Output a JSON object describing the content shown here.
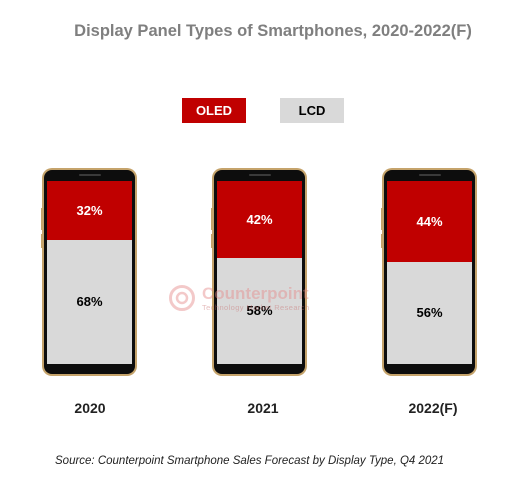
{
  "title": "Display Panel Types of Smartphones, 2020-2022(F)",
  "legend": [
    {
      "label": "OLED",
      "color": "#c00000",
      "text_color": "#ffffff"
    },
    {
      "label": "LCD",
      "color": "#d9d9d9",
      "text_color": "#000000"
    }
  ],
  "source": "Source: Counterpoint Smartphone Sales Forecast by Display Type, Q4 2021",
  "watermark": {
    "name": "Counterpoint",
    "tagline": "Technology Market Research"
  },
  "colors": {
    "phone_frame": "#c5a36b",
    "oled": "#c00000",
    "lcd": "#d9d9d9",
    "title": "#7f7f7f"
  },
  "chart_data": {
    "type": "bar",
    "stacked": true,
    "percent": true,
    "title": "Display Panel Types of Smartphones, 2020-2022(F)",
    "categories": [
      "2020",
      "2021",
      "2022(F)"
    ],
    "series": [
      {
        "name": "OLED",
        "values": [
          32,
          42,
          44
        ],
        "labels": [
          "32%",
          "42%",
          "44%"
        ]
      },
      {
        "name": "LCD",
        "values": [
          68,
          58,
          56
        ],
        "labels": [
          "68%",
          "58%",
          "56%"
        ]
      }
    ],
    "ylim": [
      0,
      100
    ],
    "legend_position": "top",
    "grid": false
  }
}
